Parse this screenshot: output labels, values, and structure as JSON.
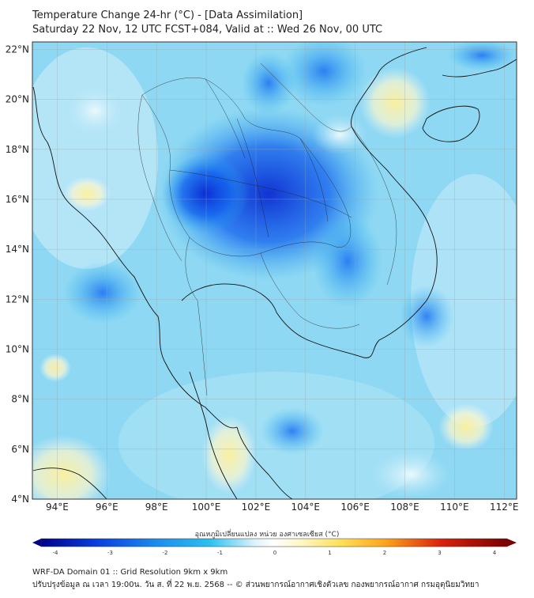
{
  "header": {
    "title": "Temperature Change 24-hr (°C) - [Data Assimilation]",
    "subtitle": "Saturday 22 Nov, 12 UTC FCST+084, Valid at :: Wed 26 Nov, 00 UTC"
  },
  "map": {
    "lat_ticks": [
      "22°N",
      "20°N",
      "18°N",
      "16°N",
      "14°N",
      "12°N",
      "10°N",
      "8°N",
      "6°N",
      "4°N"
    ],
    "lon_ticks": [
      "94°E",
      "96°E",
      "98°E",
      "100°E",
      "102°E",
      "104°E",
      "106°E",
      "108°E",
      "110°E",
      "112°E"
    ],
    "lat_range": [
      4,
      22.3
    ],
    "lon_range": [
      93,
      112.5
    ]
  },
  "colorbar": {
    "label": "อุณหภูมิเปลี่ยนแปลง หน่วย องศาเซลเซียส (°C)",
    "ticks": [
      "-4",
      "-3",
      "-2",
      "-1",
      "0",
      "1",
      "2",
      "3",
      "4"
    ],
    "range": [
      -4,
      4
    ],
    "colors": {
      "min": "#00008b",
      "blue": "#0a3ee0",
      "light_blue": "#29c0f0",
      "pale": "#dff4fb",
      "zero": "#ffffff",
      "yellow": "#fff3a0",
      "orange": "#ffa21a",
      "red": "#d9200c",
      "max": "#7a0000"
    }
  },
  "footer": {
    "line1": "WRF-DA Domain 01 :: Grid Resolution 9km x 9km",
    "line2": "ปรับปรุงข้อมูล ณ เวลา 19:00น. วัน ส. ที่ 22 พ.ย. 2568 -- © ส่วนพยากรณ์อากาศเชิงตัวเลข กองพยากรณ์อากาศ กรมอุตุนิยมวิทยา"
  }
}
